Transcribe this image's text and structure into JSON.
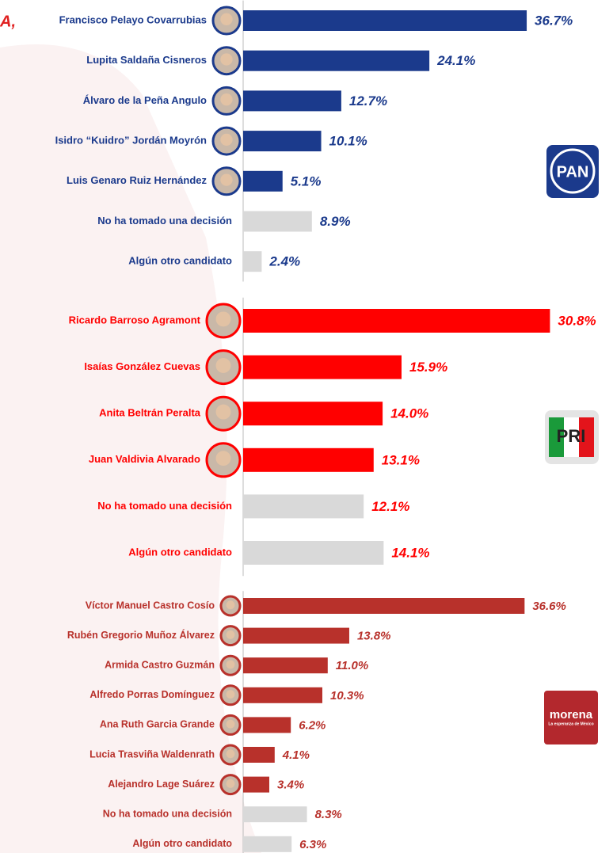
{
  "fragment": "A,",
  "chart_data": [
    {
      "type": "bar",
      "color": "#1b3a8c",
      "label_color": "#1b3a8c",
      "categories": [
        "Francisco Pelayo Covarrubias",
        "Lupita Saldaña Cisneros",
        "Álvaro de la Peña Angulo",
        "Isidro “Kuidro” Jordán Moyrón",
        "Luis Genaro Ruiz Hernández",
        "No ha tomado una decisión",
        "Algún otro candidato"
      ],
      "values": [
        36.7,
        24.1,
        12.7,
        10.1,
        5.1,
        8.9,
        2.4
      ],
      "value_labels": [
        "36.7%",
        "24.1%",
        "12.7%",
        "10.1%",
        "5.1%",
        "8.9%",
        "2.4%"
      ],
      "colors": [
        "#1b3a8c",
        "#1b3a8c",
        "#1b3a8c",
        "#1b3a8c",
        "#1b3a8c",
        "#d9d9d9",
        "#d9d9d9"
      ],
      "xlim": [
        0,
        41
      ],
      "logo": "PAN"
    },
    {
      "type": "bar",
      "color": "#ff0000",
      "label_color": "#ff0000",
      "categories": [
        "Ricardo Barroso Agramont",
        "Isaías González Cuevas",
        "Anita Beltrán Peralta",
        "Juan Valdivia Alvarado",
        "No ha tomado una decisión",
        "Algún otro candidato"
      ],
      "values": [
        30.8,
        15.9,
        14.0,
        13.1,
        12.1,
        14.1
      ],
      "value_labels": [
        "30.8%",
        "15.9%",
        "14.0%",
        "13.1%",
        "12.1%",
        "14.1%"
      ],
      "colors": [
        "#ff0000",
        "#ff0000",
        "#ff0000",
        "#ff0000",
        "#d9d9d9",
        "#d9d9d9"
      ],
      "xlim": [
        0,
        31.8
      ],
      "logo": "PRI"
    },
    {
      "type": "bar",
      "color": "#b8312b",
      "label_color": "#b8312b",
      "categories": [
        "Víctor Manuel Castro Cosío",
        "Rubén Gregorio Muñoz Álvarez",
        "Armida Castro Guzmán",
        "Alfredo Porras Domínguez",
        "Ana Ruth Garcia Grande",
        "Lucia Trasviña Waldenrath",
        "Alejandro Lage Suárez",
        "No ha tomado una decisión",
        "Algún otro candidato"
      ],
      "values": [
        36.6,
        13.8,
        11.0,
        10.3,
        6.2,
        4.1,
        3.4,
        8.3,
        6.3
      ],
      "value_labels": [
        "36.6%",
        "13.8%",
        "11.0%",
        "10.3%",
        "6.2%",
        "4.1%",
        "3.4%",
        "8.3%",
        "6.3%"
      ],
      "colors": [
        "#b8312b",
        "#b8312b",
        "#b8312b",
        "#b8312b",
        "#b8312b",
        "#b8312b",
        "#b8312b",
        "#d9d9d9",
        "#d9d9d9"
      ],
      "xlim": [
        0,
        41.2
      ],
      "logo": "morena",
      "logo_subtitle": "La esperanza de México"
    }
  ]
}
